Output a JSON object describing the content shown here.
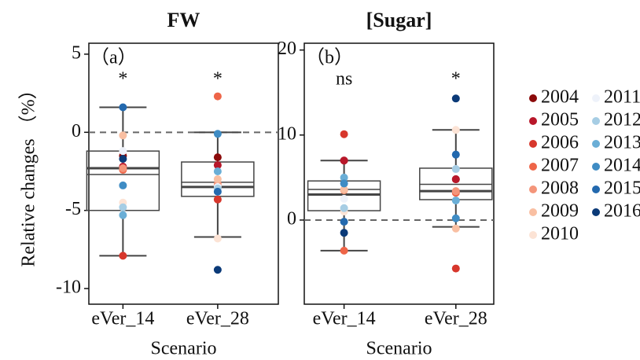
{
  "chart_data": [
    {
      "type": "box",
      "title": "FW",
      "xlabel": "Scenario",
      "ylabel": "Relative changes （%）",
      "categories": [
        "eVer_14",
        "eVer_28"
      ],
      "ylim": [
        -11,
        5.7
      ],
      "yticks": [
        5,
        0,
        -5,
        -10
      ],
      "reference_line": 0,
      "panel_label": "（a）",
      "significance": [
        "*",
        "*"
      ],
      "boxes": [
        {
          "whisker_low": -7.9,
          "q1": -5.0,
          "median": -2.3,
          "mean": -2.7,
          "q3": -1.2,
          "whisker_high": 1.6
        },
        {
          "whisker_low": -6.7,
          "q1": -4.1,
          "median": -3.5,
          "mean": -3.2,
          "q3": -1.9,
          "whisker_high": 0
        }
      ],
      "series": [
        {
          "name": "2004",
          "color": "#8b0a0a",
          "values": [
            -1.5,
            -1.6
          ]
        },
        {
          "name": "2005",
          "color": "#b8172a",
          "values": [
            -2.2,
            -2.1
          ]
        },
        {
          "name": "2006",
          "color": "#d7372c",
          "values": [
            -7.9,
            -4.3
          ]
        },
        {
          "name": "2007",
          "color": "#ee6548",
          "values": [
            -2.4,
            2.3
          ]
        },
        {
          "name": "2008",
          "color": "#f4957a",
          "values": [
            -2.3,
            -3.3
          ]
        },
        {
          "name": "2009",
          "color": "#f9bfa2",
          "values": [
            -0.2,
            -3.0
          ]
        },
        {
          "name": "2010",
          "color": "#fce3d5",
          "values": [
            -4.5,
            -6.8
          ]
        },
        {
          "name": "2011",
          "color": "#eef2fa",
          "values": [
            -1.2,
            -3.5
          ]
        },
        {
          "name": "2012",
          "color": "#a6cde4",
          "values": [
            -4.8,
            -3.6
          ]
        },
        {
          "name": "2013",
          "color": "#6aaed6",
          "values": [
            -5.3,
            -2.5
          ]
        },
        {
          "name": "2014",
          "color": "#3f8cc4",
          "values": [
            -3.4,
            -0.1
          ]
        },
        {
          "name": "2015",
          "color": "#2369ae",
          "values": [
            1.6,
            -3.8
          ]
        },
        {
          "name": "2016",
          "color": "#0b3a78",
          "values": [
            -1.7,
            -8.8
          ]
        }
      ]
    },
    {
      "type": "box",
      "title": "[Sugar]",
      "xlabel": "Scenario",
      "categories": [
        "eVer_14",
        "eVer_28"
      ],
      "ylim": [
        -9.9,
        20.8
      ],
      "yticks": [
        0,
        10,
        20
      ],
      "reference_line": 0,
      "panel_label": "（b）",
      "significance": [
        "ns",
        "*"
      ],
      "boxes": [
        {
          "whisker_low": -3.6,
          "q1": 1.1,
          "median": 3.0,
          "mean": 3.6,
          "q3": 4.6,
          "whisker_high": 7.0
        },
        {
          "whisker_low": -0.8,
          "q1": 2.4,
          "median": 3.4,
          "mean": 4.2,
          "q3": 6.1,
          "whisker_high": 10.6
        }
      ],
      "series": [
        {
          "values": [
            7.0,
            4.8
          ]
        },
        {
          "values": [
            7.0,
            4.8
          ]
        },
        {
          "values": [
            10.1,
            -5.7
          ]
        },
        {
          "values": [
            -3.6,
            3.2
          ]
        },
        {
          "values": [
            3.5,
            3.4
          ]
        },
        {
          "values": [
            3.6,
            -1.0
          ]
        },
        {
          "values": [
            1.0,
            10.6
          ]
        },
        {
          "values": [
            2.5,
            6.0
          ]
        },
        {
          "values": [
            1.4,
            6.0
          ]
        },
        {
          "values": [
            5.0,
            2.3
          ]
        },
        {
          "values": [
            4.3,
            0.2
          ]
        },
        {
          "values": [
            -0.2,
            7.7
          ]
        },
        {
          "values": [
            -1.5,
            14.3
          ]
        }
      ]
    }
  ]
}
